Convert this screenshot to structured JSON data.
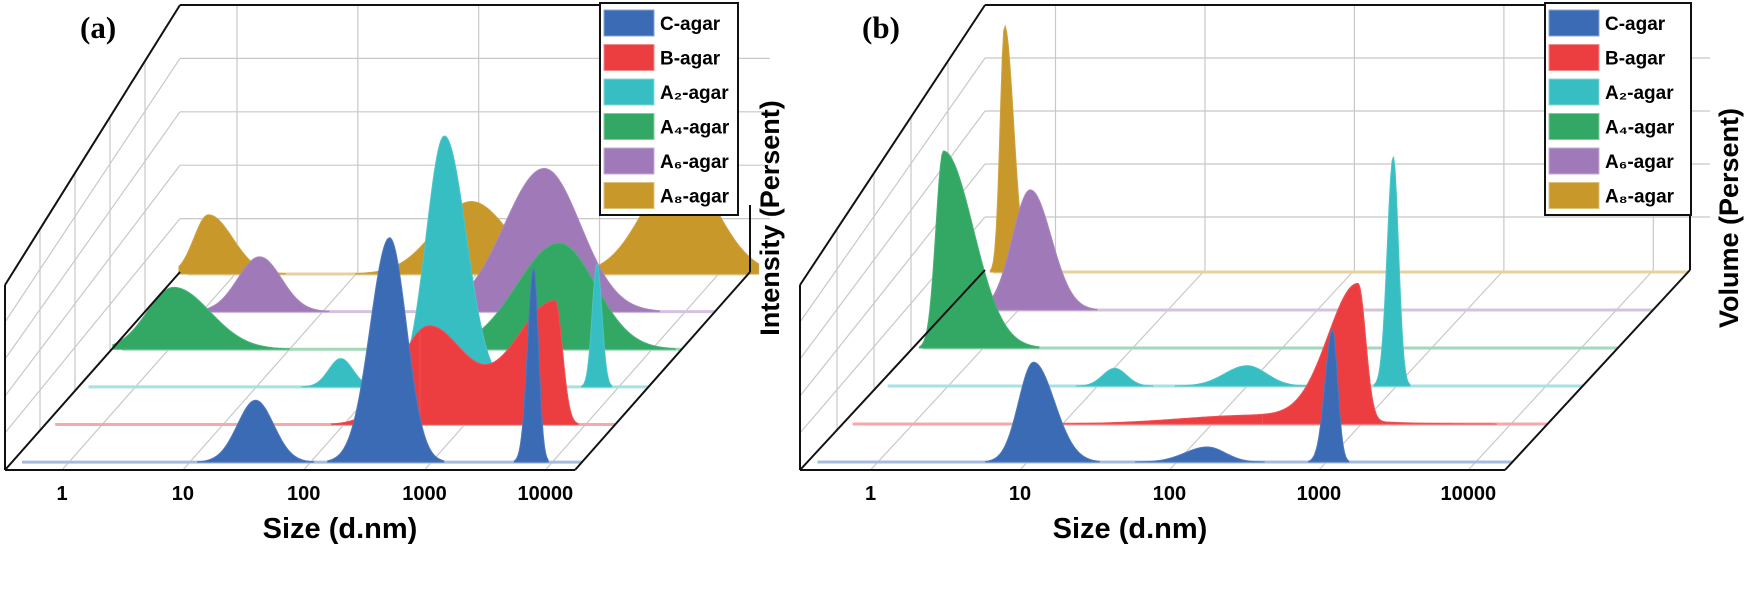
{
  "chart_data": [
    {
      "type": "area",
      "panel_label": "(a)",
      "title": "",
      "xlabel": "Size (d.nm)",
      "ylabel": "Intensity (Persent)",
      "xscale": "log",
      "xticks": [
        "1",
        "10",
        "100",
        "1000",
        "10000"
      ],
      "ylim": [
        0,
        30
      ],
      "grid": true,
      "legend": "top-right",
      "series": [
        {
          "name": "C-agar",
          "color": "#3b6bb4",
          "peaks": [
            {
              "center_nm": 35,
              "height": 7.0,
              "sigma_l": 0.15,
              "sigma_r": 0.15
            },
            {
              "center_nm": 450,
              "height": 25.4,
              "sigma_l": 0.16,
              "sigma_r": 0.14
            },
            {
              "center_nm": 7000,
              "height": 22.0,
              "sigma_l": 0.05,
              "sigma_r": 0.04
            }
          ]
        },
        {
          "name": "B-agar",
          "color": "#ec3e41",
          "peaks": [
            {
              "center_nm": 500,
              "height": 11.0,
              "sigma_l": 0.25,
              "sigma_r": 0.3
            },
            {
              "center_nm": 5600,
              "height": 14.0,
              "sigma_l": 0.35,
              "sigma_r": 0.06
            }
          ]
        },
        {
          "name": "A₂-agar",
          "color": "#37bec2",
          "peaks": [
            {
              "center_nm": 50,
              "height": 3.2,
              "sigma_l": 0.1,
              "sigma_r": 0.1
            },
            {
              "center_nm": 360,
              "height": 28.4,
              "sigma_l": 0.15,
              "sigma_r": 0.18
            },
            {
              "center_nm": 6600,
              "height": 14.0,
              "sigma_l": 0.04,
              "sigma_r": 0.04
            }
          ]
        },
        {
          "name": "A₄-agar",
          "color": "#33a864",
          "peaks": [
            {
              "center_nm": 1.1,
              "height": 7.0,
              "sigma_l": 0.22,
              "sigma_r": 0.3
            },
            {
              "center_nm": 1700,
              "height": 12.0,
              "sigma_l": 0.35,
              "sigma_r": 0.3
            }
          ]
        },
        {
          "name": "A₆-agar",
          "color": "#a07ab8",
          "peaks": [
            {
              "center_nm": 3,
              "height": 6.2,
              "sigma_l": 0.18,
              "sigma_r": 0.18
            },
            {
              "center_nm": 680,
              "height": 16.2,
              "sigma_l": 0.33,
              "sigma_r": 0.3
            }
          ]
        },
        {
          "name": "A₈-agar",
          "color": "#c9982a",
          "peaks": [
            {
              "center_nm": 0.6,
              "height": 6.7,
              "sigma_l": 0.12,
              "sigma_r": 0.2
            },
            {
              "center_nm": 90,
              "height": 8.2,
              "sigma_l": 0.3,
              "sigma_r": 0.3
            },
            {
              "center_nm": 4800,
              "height": 12.0,
              "sigma_l": 0.3,
              "sigma_r": 0.3
            }
          ]
        }
      ]
    },
    {
      "type": "area",
      "panel_label": "(b)",
      "title": "",
      "xlabel": "Size (d.nm)",
      "ylabel": "Volume (Persent)",
      "xscale": "log",
      "xticks": [
        "1",
        "10",
        "100",
        "1000",
        "10000"
      ],
      "ylim": [
        0,
        30
      ],
      "grid": true,
      "legend": "top-right",
      "series": [
        {
          "name": "C-agar",
          "color": "#3b6bb4",
          "peaks": [
            {
              "center_nm": 11,
              "height": 11.3,
              "sigma_l": 0.1,
              "sigma_r": 0.14
            },
            {
              "center_nm": 160,
              "height": 1.7,
              "sigma_l": 0.15,
              "sigma_r": 0.12
            },
            {
              "center_nm": 1100,
              "height": 15.0,
              "sigma_l": 0.05,
              "sigma_r": 0.035
            }
          ]
        },
        {
          "name": "B-agar",
          "color": "#ec3e41",
          "peaks": [
            {
              "center_nm": 200,
              "height": 1.0,
              "sigma_l": 0.5,
              "sigma_r": 0.5
            },
            {
              "center_nm": 950,
              "height": 15.5,
              "sigma_l": 0.2,
              "sigma_r": 0.05
            }
          ]
        },
        {
          "name": "A₂-agar",
          "color": "#37bec2",
          "peaks": [
            {
              "center_nm": 13,
              "height": 2.0,
              "sigma_l": 0.08,
              "sigma_r": 0.08
            },
            {
              "center_nm": 100,
              "height": 2.3,
              "sigma_l": 0.15,
              "sigma_r": 0.13
            },
            {
              "center_nm": 950,
              "height": 26.0,
              "sigma_l": 0.04,
              "sigma_r": 0.035
            }
          ]
        },
        {
          "name": "A₄-agar",
          "color": "#33a864",
          "peaks": [
            {
              "center_nm": 0.54,
              "height": 22.3,
              "sigma_l": 0.05,
              "sigma_r": 0.2
            }
          ]
        },
        {
          "name": "A₆-agar",
          "color": "#a07ab8",
          "peaks": [
            {
              "center_nm": 1.2,
              "height": 13.6,
              "sigma_l": 0.12,
              "sigma_r": 0.14
            }
          ]
        },
        {
          "name": "A₈-agar",
          "color": "#c9982a",
          "peaks": [
            {
              "center_nm": 0.47,
              "height": 27.9,
              "sigma_l": 0.03,
              "sigma_r": 0.06
            }
          ]
        }
      ]
    }
  ]
}
